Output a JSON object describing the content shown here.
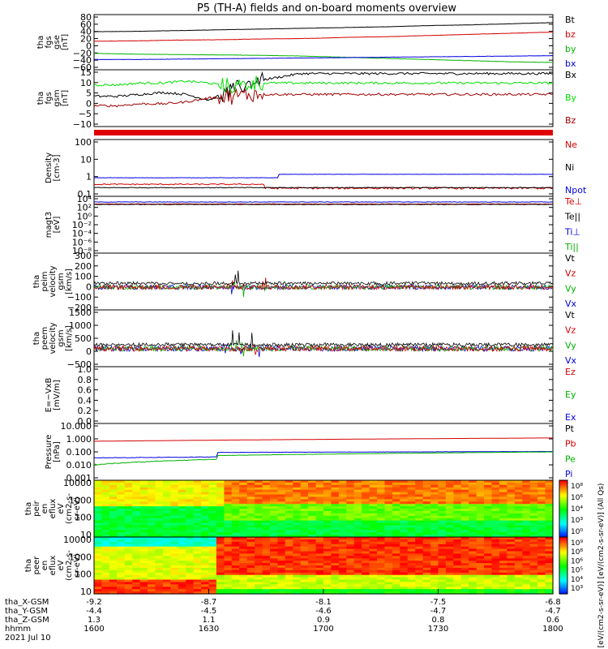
{
  "title": "P5 (TH-A) fields and on-board moments overview",
  "colors": {
    "black": "#000000",
    "red": "#d40000",
    "green": "#00e000",
    "blue": "#0000dd",
    "darkred": "#a00000"
  },
  "chart_data": [
    {
      "type": "line",
      "ylabel": [
        "tha",
        "fgs",
        "gse",
        "[nT]"
      ],
      "yticks": [
        "80",
        "60",
        "40",
        "20",
        "0",
        "−20",
        "−40",
        "−60"
      ],
      "ylim": [
        -60,
        85
      ],
      "legend": [
        {
          "name": "Bt",
          "color": "#000000"
        },
        {
          "name": "bz",
          "color": "#d40000"
        },
        {
          "name": "by",
          "color": "#00b000"
        },
        {
          "name": "bx",
          "color": "#0000dd"
        }
      ],
      "series": [
        {
          "name": "Bt",
          "values": [
            40,
            41,
            43,
            45,
            47,
            49,
            51,
            53,
            56,
            58,
            61,
            64
          ]
        },
        {
          "name": "bz",
          "values": [
            15,
            16,
            18,
            19,
            21,
            22,
            25,
            27,
            30,
            33,
            36,
            39
          ]
        },
        {
          "name": "by",
          "values": [
            -17,
            -19,
            -20,
            -21,
            -22,
            -24,
            -27,
            -30,
            -33,
            -36,
            -39,
            -41
          ]
        },
        {
          "name": "bx",
          "values": [
            -33,
            -33,
            -32,
            -31,
            -30,
            -29,
            -28,
            -27,
            -26,
            -25,
            -24,
            -23
          ]
        }
      ]
    },
    {
      "type": "line",
      "ylabel": [
        "tha",
        "fgs",
        "gsm",
        "[nT]"
      ],
      "yticks": [
        "15",
        "10",
        "5",
        "0",
        "−5",
        "−10"
      ],
      "ylim": [
        -13,
        17
      ],
      "legend": [
        {
          "name": "Bx",
          "color": "#000000"
        },
        {
          "name": "By",
          "color": "#00e000"
        },
        {
          "name": "Bz",
          "color": "#a00000"
        }
      ],
      "series": [
        {
          "name": "Bx",
          "values": [
            3,
            3,
            4,
            5,
            4,
            1,
            6,
            11,
            13,
            15,
            15,
            15,
            15,
            15,
            15,
            15,
            15,
            15,
            15,
            15,
            15
          ]
        },
        {
          "name": "By",
          "values": [
            9,
            9,
            10,
            10,
            11,
            10,
            8,
            10,
            10,
            10,
            10,
            10,
            10,
            10,
            10,
            10,
            10,
            10,
            10,
            10,
            10
          ]
        },
        {
          "name": "Bz",
          "values": [
            -2,
            -2,
            -1,
            -1,
            0,
            2,
            3,
            4,
            4,
            4,
            4,
            4,
            4,
            4,
            4,
            4,
            4,
            4,
            4,
            4,
            4
          ]
        }
      ]
    },
    {
      "type": "line",
      "ylabel": [
        "Density",
        "[cm-3]"
      ],
      "yticks": [
        "100",
        "10",
        "1",
        "0.1"
      ],
      "log": true,
      "legend": [
        {
          "name": "Ne",
          "color": "#d40000"
        },
        {
          "name": "Ni",
          "color": "#000000"
        },
        {
          "name": "Npot",
          "color": "#0000dd"
        }
      ]
    },
    {
      "type": "line",
      "ylabel": [
        "magt3",
        "[eV]"
      ],
      "yticks": [
        "10⁴",
        "10²",
        "10⁰",
        "10⁻²",
        "10⁻⁴",
        "10⁻⁶",
        "10⁻⁸"
      ],
      "log": true,
      "legend": [
        {
          "name": "Te⊥",
          "color": "#d40000"
        },
        {
          "name": "Te||",
          "color": "#000000"
        },
        {
          "name": "Ti⊥",
          "color": "#0000dd"
        },
        {
          "name": "Ti||",
          "color": "#00b000"
        }
      ]
    },
    {
      "type": "line",
      "ylabel": [
        "tha",
        "peim",
        "velocity",
        "gsm",
        "[km/s]"
      ],
      "yticks": [
        "300",
        "200",
        "100",
        "0",
        "−100",
        "−200"
      ],
      "ylim": [
        -200,
        300
      ],
      "legend": [
        {
          "name": "Vt",
          "color": "#000000"
        },
        {
          "name": "Vz",
          "color": "#d40000"
        },
        {
          "name": "Vy",
          "color": "#00b000"
        },
        {
          "name": "Vx",
          "color": "#0000dd"
        }
      ]
    },
    {
      "type": "line",
      "ylabel": [
        "tha",
        "peem",
        "velocity",
        "gsm",
        "[km/s]"
      ],
      "yticks": [
        "1500",
        "1000",
        "500",
        "0",
        "−500"
      ],
      "ylim": [
        -700,
        1500
      ],
      "legend": [
        {
          "name": "Vt",
          "color": "#000000"
        },
        {
          "name": "Vz",
          "color": "#d40000"
        },
        {
          "name": "Vy",
          "color": "#00b000"
        },
        {
          "name": "Vx",
          "color": "#0000dd"
        }
      ]
    },
    {
      "type": "line",
      "ylabel": [
        "E=−VxB",
        "[mV/m]"
      ],
      "yticks": [
        "1.0",
        "0.8",
        "0.6",
        "0.4",
        "0.2",
        "0.0"
      ],
      "ylim": [
        0,
        1
      ],
      "legend": [
        {
          "name": "Ez",
          "color": "#d40000"
        },
        {
          "name": "Ey",
          "color": "#00b000"
        },
        {
          "name": "Ex",
          "color": "#0000dd"
        }
      ]
    },
    {
      "type": "line",
      "ylabel": [
        "Pressure",
        "[nPa]"
      ],
      "yticks": [
        "10.000",
        "1.000",
        "0.100",
        "0.010",
        "0.001"
      ],
      "log": true,
      "legend": [
        {
          "name": "Pt",
          "color": "#000000"
        },
        {
          "name": "Pb",
          "color": "#d40000"
        },
        {
          "name": "Pe",
          "color": "#00b000"
        },
        {
          "name": "Pi",
          "color": "#0000dd"
        }
      ]
    },
    {
      "type": "heatmap",
      "ylabel": [
        "tha",
        "peir",
        "en",
        "eflux",
        "eV",
        "(cm2-s-",
        "sr-eV)"
      ],
      "yticks": [
        "10000",
        "1000",
        "100",
        "10"
      ]
    },
    {
      "type": "heatmap",
      "ylabel": [
        "tha",
        "peer",
        "en",
        "eflux",
        "eV",
        "(cm2-s-",
        "sr-eV)"
      ],
      "yticks": [
        "10000",
        "1000",
        "100",
        "10"
      ]
    }
  ],
  "colorbar": {
    "ticks1": [
      "10⁸",
      "10⁶",
      "10⁴",
      "10³",
      "10⁰"
    ],
    "ticks2": [
      "10⁹",
      "10⁸",
      "10⁶",
      "10⁵",
      "10⁴",
      "10³"
    ],
    "label": "[eV/(cm2-s-sr-eV)] [eV/(cm2-s-sr-eV)] (All Qs)"
  },
  "xaxis": {
    "rows": [
      {
        "label": "tha_X-GSM",
        "values": [
          "-9.2",
          "-8.7",
          "-8.1",
          "-7.5",
          "-6.8"
        ]
      },
      {
        "label": "tha_Y-GSM",
        "values": [
          "-4.4",
          "-4.5",
          "-4.6",
          "-4.7",
          "-4.7"
        ]
      },
      {
        "label": "tha_Z-GSM",
        "values": [
          "1.3",
          "1.1",
          "0.9",
          "0.8",
          "0.6"
        ]
      },
      {
        "label": "hhmm",
        "values": [
          "1600",
          "1630",
          "1700",
          "1730",
          "1800"
        ]
      }
    ],
    "date": "2021 Jul 10"
  }
}
